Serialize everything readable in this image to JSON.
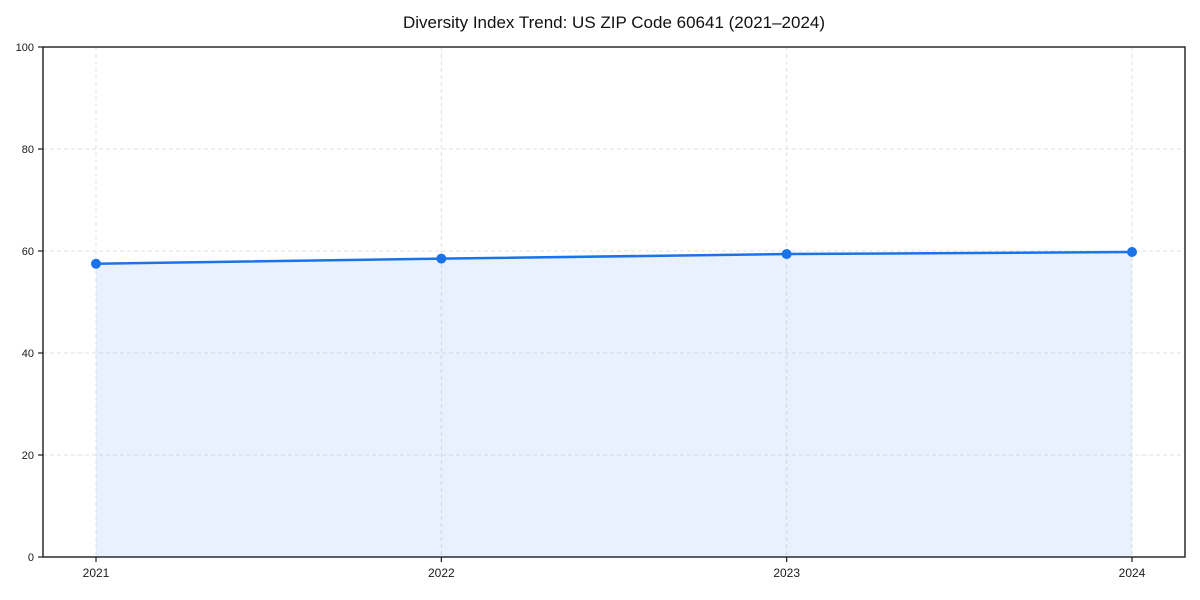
{
  "page": {
    "background": "#ffffff"
  },
  "header": {
    "title": "Diversity Index Trend: US ZIP Code 60641 (2021–2024)"
  },
  "chart_data": {
    "type": "line",
    "title": "Diversity Index Trend: US ZIP Code 60641 (2021–2024)",
    "x": [
      2021,
      2022,
      2023,
      2024
    ],
    "xtick_labels": [
      "2021",
      "2022",
      "2023",
      "2024"
    ],
    "series": [
      {
        "name": "Diversity Index",
        "values": [
          57.5,
          58.5,
          59.4,
          59.8
        ]
      }
    ],
    "xlabel": "",
    "ylabel": "",
    "ylim": [
      0,
      100
    ],
    "yticks": [
      0,
      20,
      40,
      60,
      80,
      100
    ],
    "grid": true,
    "grid_style": "dashed",
    "legend_position": "none",
    "colors": {
      "line": "#1a73e8",
      "marker": "#1a73e8",
      "area_fill": "rgba(26,115,232,0.10)",
      "gridline": "#e2e2e2",
      "spine": "#1c1c1c",
      "tick_label": "#1a1a1a",
      "title": "#111111"
    },
    "style": {
      "marker": "circle",
      "marker_radius": 5,
      "line_width": 2.5,
      "area_fill_on": true
    }
  }
}
